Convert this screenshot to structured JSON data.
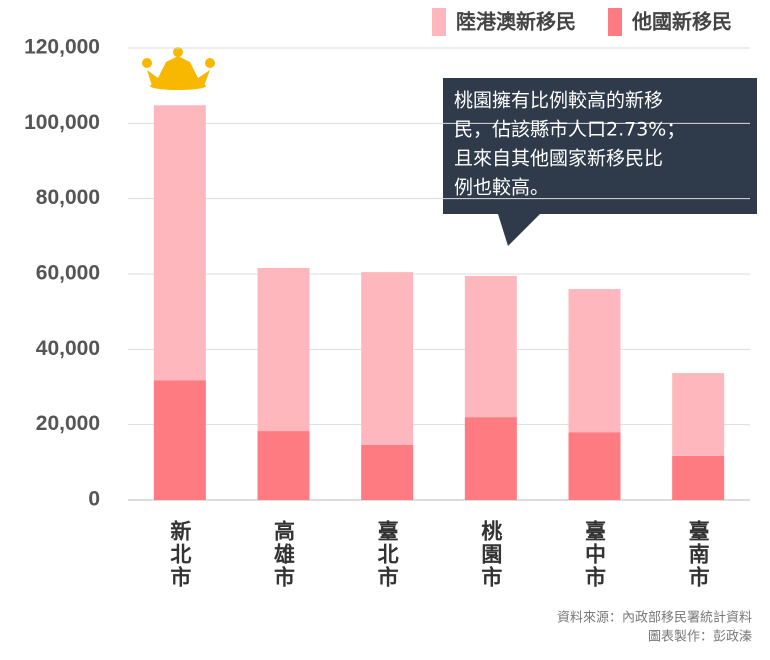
{
  "chart_data": {
    "type": "stacked-bar",
    "categories": [
      "新北市",
      "高雄市",
      "臺北市",
      "桃園市",
      "臺中市",
      "臺南市"
    ],
    "series": [
      {
        "name": "陸港澳新移民",
        "color": "#feb8bd",
        "values": [
          73000,
          43300,
          45900,
          37500,
          38000,
          22000
        ]
      },
      {
        "name": "他國新移民",
        "color": "#fd7b81",
        "values": [
          31800,
          18300,
          14600,
          22000,
          18000,
          11700
        ]
      }
    ],
    "ylim": [
      0,
      120000
    ],
    "yticks": [
      0,
      {
        "value": 20000,
        "label": "20,000"
      },
      {
        "value": 40000,
        "label": "40,000"
      },
      {
        "value": 60000,
        "label": "60,000"
      },
      {
        "value": 80000,
        "label": "80,000"
      },
      {
        "value": 100000,
        "label": "100,000"
      },
      {
        "value": 120000,
        "label": "120,000"
      }
    ],
    "grid": true,
    "annotation": [
      "桃園擁有比例較高的新移",
      "民，佔該縣市人口2.73%；",
      "且來自其他國家新移民比",
      "例也較高。"
    ],
    "source": [
      "資料來源：內政部移民署統計資料",
      "圖表製作：彭政溱"
    ]
  }
}
